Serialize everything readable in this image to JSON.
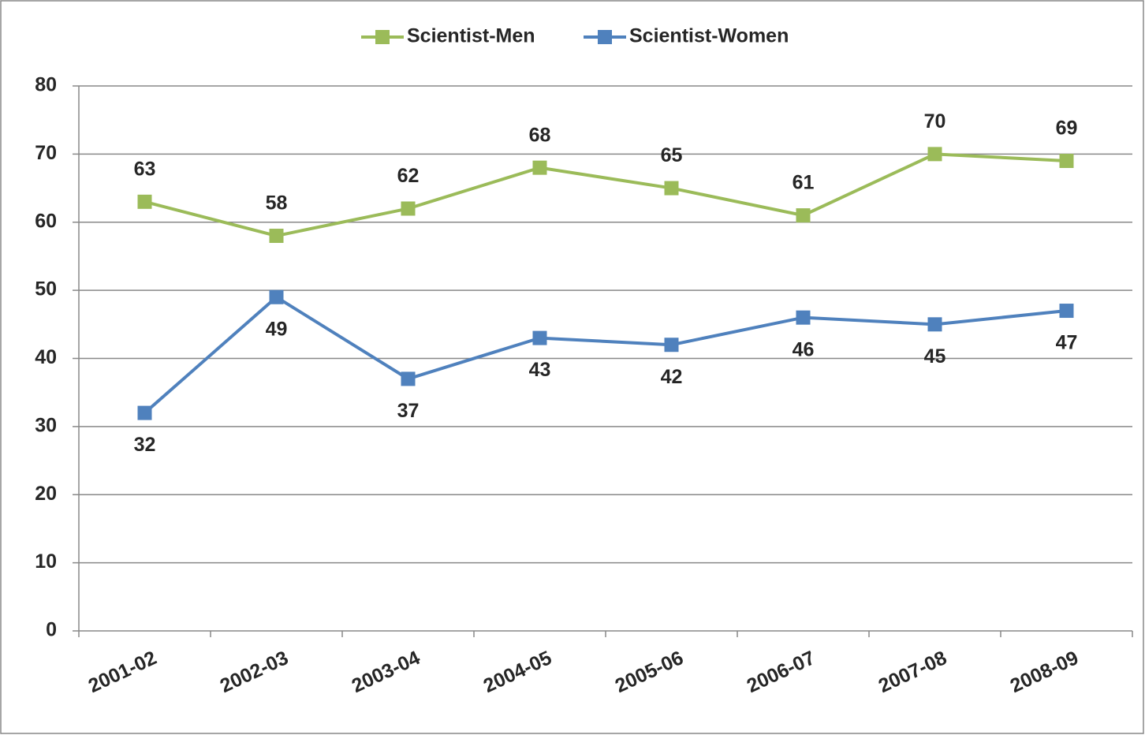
{
  "chart_data": {
    "type": "line",
    "categories": [
      "2001-02",
      "2002-03",
      "2003-04",
      "2004-05",
      "2005-06",
      "2006-07",
      "2007-08",
      "2008-09"
    ],
    "series": [
      {
        "name": "Scientist-Men",
        "color": "#9bbb59",
        "values": [
          63,
          58,
          62,
          68,
          65,
          61,
          70,
          69
        ]
      },
      {
        "name": "Scientist-Women",
        "color": "#4f81bd",
        "values": [
          32,
          49,
          37,
          43,
          42,
          46,
          45,
          47
        ]
      }
    ],
    "ylim": [
      0,
      80
    ],
    "yticks": [
      0,
      10,
      20,
      30,
      40,
      50,
      60,
      70,
      80
    ],
    "grid": true,
    "legend": "top"
  }
}
